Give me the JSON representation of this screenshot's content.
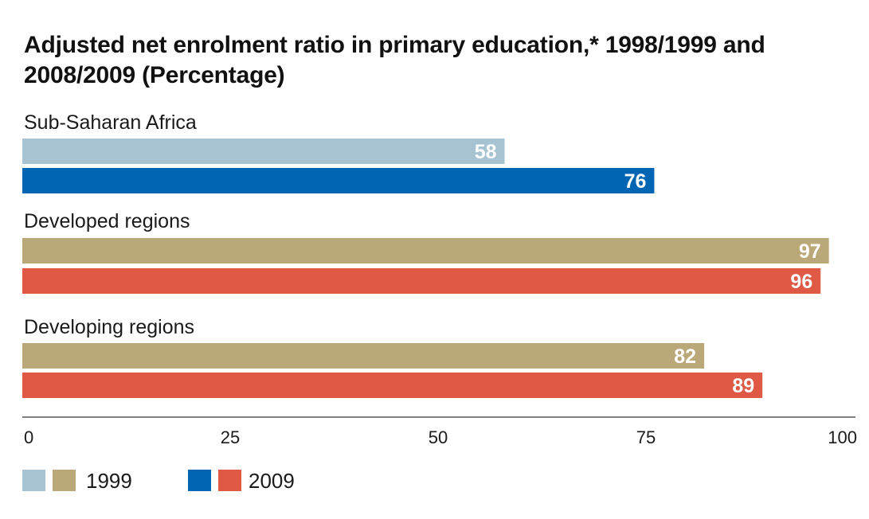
{
  "chart_data": {
    "type": "bar",
    "orientation": "horizontal",
    "title": "Adjusted net enrolment ratio in primary education,* 1998/1999 and 2008/2009 (Percentage)",
    "xlim": [
      0,
      100
    ],
    "ticks": [
      0,
      25,
      50,
      75,
      100
    ],
    "groups": [
      {
        "label": "Sub-Saharan Africa",
        "bars": [
          {
            "series": "1999",
            "value": 58,
            "color": "#a7c3d1"
          },
          {
            "series": "2009",
            "value": 76,
            "color": "#0066b3"
          }
        ]
      },
      {
        "label": "Developed regions",
        "bars": [
          {
            "series": "1999",
            "value": 97,
            "color": "#bba878"
          },
          {
            "series": "2009",
            "value": 96,
            "color": "#df5944"
          }
        ]
      },
      {
        "label": "Developing regions",
        "bars": [
          {
            "series": "1999",
            "value": 82,
            "color": "#bba878"
          },
          {
            "series": "2009",
            "value": 89,
            "color": "#df5944"
          }
        ]
      }
    ],
    "legend": [
      {
        "label": "1999",
        "colors": [
          "#a7c3d1",
          "#bba878"
        ]
      },
      {
        "label": "2009",
        "colors": [
          "#0066b3",
          "#df5944"
        ]
      }
    ],
    "axis_color": "#555555"
  }
}
